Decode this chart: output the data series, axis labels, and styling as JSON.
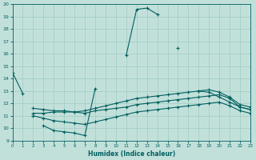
{
  "xlabel": "Humidex (Indice chaleur)",
  "xlim": [
    0,
    23
  ],
  "ylim": [
    9,
    20
  ],
  "xticks": [
    0,
    1,
    2,
    3,
    4,
    5,
    6,
    7,
    8,
    9,
    10,
    11,
    12,
    13,
    14,
    15,
    16,
    17,
    18,
    19,
    20,
    21,
    22,
    23
  ],
  "yticks": [
    9,
    10,
    11,
    12,
    13,
    14,
    15,
    16,
    17,
    18,
    19,
    20
  ],
  "bg_color": "#c2e0da",
  "grid_color": "#9eccc4",
  "line_color": "#006060",
  "line1_segments": [
    {
      "x": [
        0,
        1
      ],
      "y": [
        14.5,
        12.8
      ]
    },
    {
      "x": [
        3,
        4,
        5,
        6,
        7,
        8
      ],
      "y": [
        10.2,
        9.8,
        9.7,
        9.6,
        9.4,
        13.2
      ]
    },
    {
      "x": [
        11,
        12,
        13,
        14
      ],
      "y": [
        15.9,
        19.6,
        19.7,
        19.2
      ]
    },
    {
      "x": [
        16
      ],
      "y": [
        16.5
      ]
    },
    {
      "x": [
        18,
        19,
        20,
        21,
        22,
        23
      ],
      "y": [
        13.0,
        12.9,
        12.5,
        12.1,
        11.7,
        11.5
      ]
    }
  ],
  "line2_x": [
    2,
    3,
    4,
    5,
    6,
    7,
    8,
    9,
    10,
    11,
    12,
    13,
    14,
    15,
    16,
    17,
    18,
    19,
    20,
    21,
    22,
    23
  ],
  "line2_y": [
    11.2,
    11.2,
    11.3,
    11.3,
    11.3,
    11.2,
    11.4,
    11.5,
    11.6,
    11.7,
    11.9,
    12.0,
    12.1,
    12.2,
    12.3,
    12.4,
    12.5,
    12.6,
    12.7,
    12.4,
    11.7,
    11.5
  ],
  "line3_x": [
    2,
    3,
    4,
    5,
    6,
    7,
    8,
    9,
    10,
    11,
    12,
    13,
    14,
    15,
    16,
    17,
    18,
    19,
    20,
    21,
    22,
    23
  ],
  "line3_y": [
    11.0,
    10.8,
    10.6,
    10.5,
    10.4,
    10.3,
    10.5,
    10.7,
    10.9,
    11.1,
    11.3,
    11.4,
    11.5,
    11.6,
    11.7,
    11.8,
    11.9,
    12.0,
    12.1,
    11.8,
    11.4,
    11.2
  ],
  "line4_x": [
    2,
    3,
    4,
    5,
    6,
    7,
    8,
    9,
    10,
    11,
    12,
    13,
    14,
    15,
    16,
    17,
    18,
    19,
    20,
    21,
    22,
    23
  ],
  "line4_y": [
    11.6,
    11.5,
    11.4,
    11.4,
    11.3,
    11.4,
    11.6,
    11.8,
    12.0,
    12.2,
    12.4,
    12.5,
    12.6,
    12.7,
    12.8,
    12.9,
    13.0,
    13.1,
    12.9,
    12.5,
    11.9,
    11.7
  ]
}
